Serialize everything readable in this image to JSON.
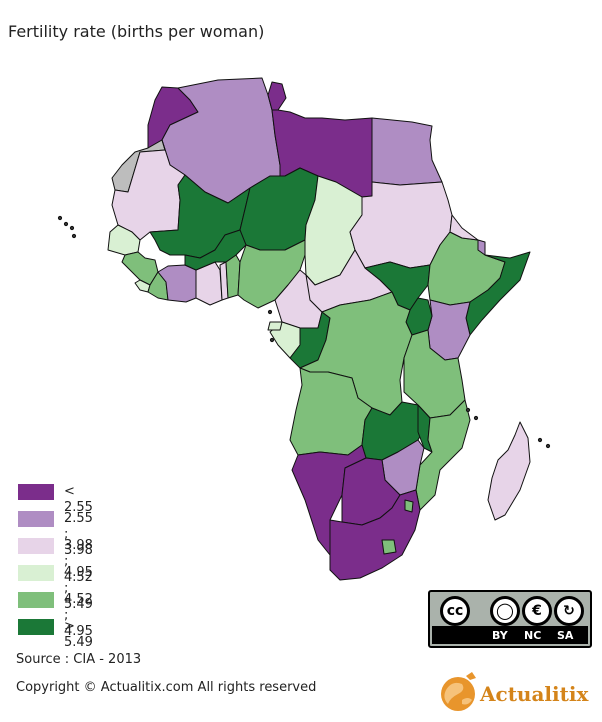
{
  "title": "Fertility rate (births per woman)",
  "legend": [
    {
      "label": "< 2.55",
      "color": "#7b2d8b"
    },
    {
      "label": "2.55 ; 3.98",
      "color": "#af8dc3"
    },
    {
      "label": "3.98 ; 4.52",
      "color": "#e7d4e8"
    },
    {
      "label": "4.95 ; 5.49",
      "color": "#d9f0d3"
    },
    {
      "label": "4.52 ; 4.95",
      "color": "#7fbf7b"
    },
    {
      "label": "> 5.49",
      "color": "#1b7837"
    }
  ],
  "source": "Source : CIA - 2013",
  "copyright": "Copyright © Actualitix.com All rights reserved",
  "license": {
    "by": "BY",
    "nc": "NC",
    "sa": "SA",
    "cc": "cc"
  },
  "brand": "Actualitix",
  "regions": [
    {
      "name": "Morocco",
      "cls": 0
    },
    {
      "name": "Algeria",
      "cls": 1
    },
    {
      "name": "Tunisia",
      "cls": 0
    },
    {
      "name": "Libya",
      "cls": 0
    },
    {
      "name": "Egypt",
      "cls": 1
    },
    {
      "name": "Western Sahara",
      "cls": "other"
    },
    {
      "name": "Mauritania",
      "cls": 2
    },
    {
      "name": "Mali",
      "cls": 5
    },
    {
      "name": "Niger",
      "cls": 5
    },
    {
      "name": "Chad",
      "cls": 3
    },
    {
      "name": "Sudan",
      "cls": 2
    },
    {
      "name": "Senegal",
      "cls": 3
    },
    {
      "name": "Guinea",
      "cls": 4
    },
    {
      "name": "Sierra Leone",
      "cls": 3
    },
    {
      "name": "Liberia",
      "cls": 4
    },
    {
      "name": "Cote d'Ivoire",
      "cls": 1
    },
    {
      "name": "Ghana",
      "cls": 2
    },
    {
      "name": "Togo",
      "cls": 2
    },
    {
      "name": "Benin",
      "cls": 4
    },
    {
      "name": "Burkina Faso",
      "cls": 5
    },
    {
      "name": "Nigeria",
      "cls": 4
    },
    {
      "name": "Cameroon",
      "cls": 2
    },
    {
      "name": "Central African Republic",
      "cls": 2
    },
    {
      "name": "South Sudan",
      "cls": 5
    },
    {
      "name": "Ethiopia",
      "cls": 4
    },
    {
      "name": "Eritrea",
      "cls": 2
    },
    {
      "name": "Djibouti",
      "cls": 1
    },
    {
      "name": "Somalia",
      "cls": 5
    },
    {
      "name": "Kenya",
      "cls": 1
    },
    {
      "name": "Uganda",
      "cls": 5
    },
    {
      "name": "Gabon",
      "cls": 3
    },
    {
      "name": "Equatorial Guinea",
      "cls": 3
    },
    {
      "name": "Congo",
      "cls": 5
    },
    {
      "name": "DR Congo",
      "cls": 4
    },
    {
      "name": "Tanzania",
      "cls": 4
    },
    {
      "name": "Angola",
      "cls": 4
    },
    {
      "name": "Zambia",
      "cls": 5
    },
    {
      "name": "Malawi",
      "cls": 5
    },
    {
      "name": "Mozambique",
      "cls": 4
    },
    {
      "name": "Zimbabwe",
      "cls": 1
    },
    {
      "name": "Namibia",
      "cls": 0
    },
    {
      "name": "Botswana",
      "cls": 0
    },
    {
      "name": "South Africa",
      "cls": 0
    },
    {
      "name": "Lesotho",
      "cls": 4
    },
    {
      "name": "Swaziland",
      "cls": 4
    },
    {
      "name": "Madagascar",
      "cls": 2
    }
  ]
}
